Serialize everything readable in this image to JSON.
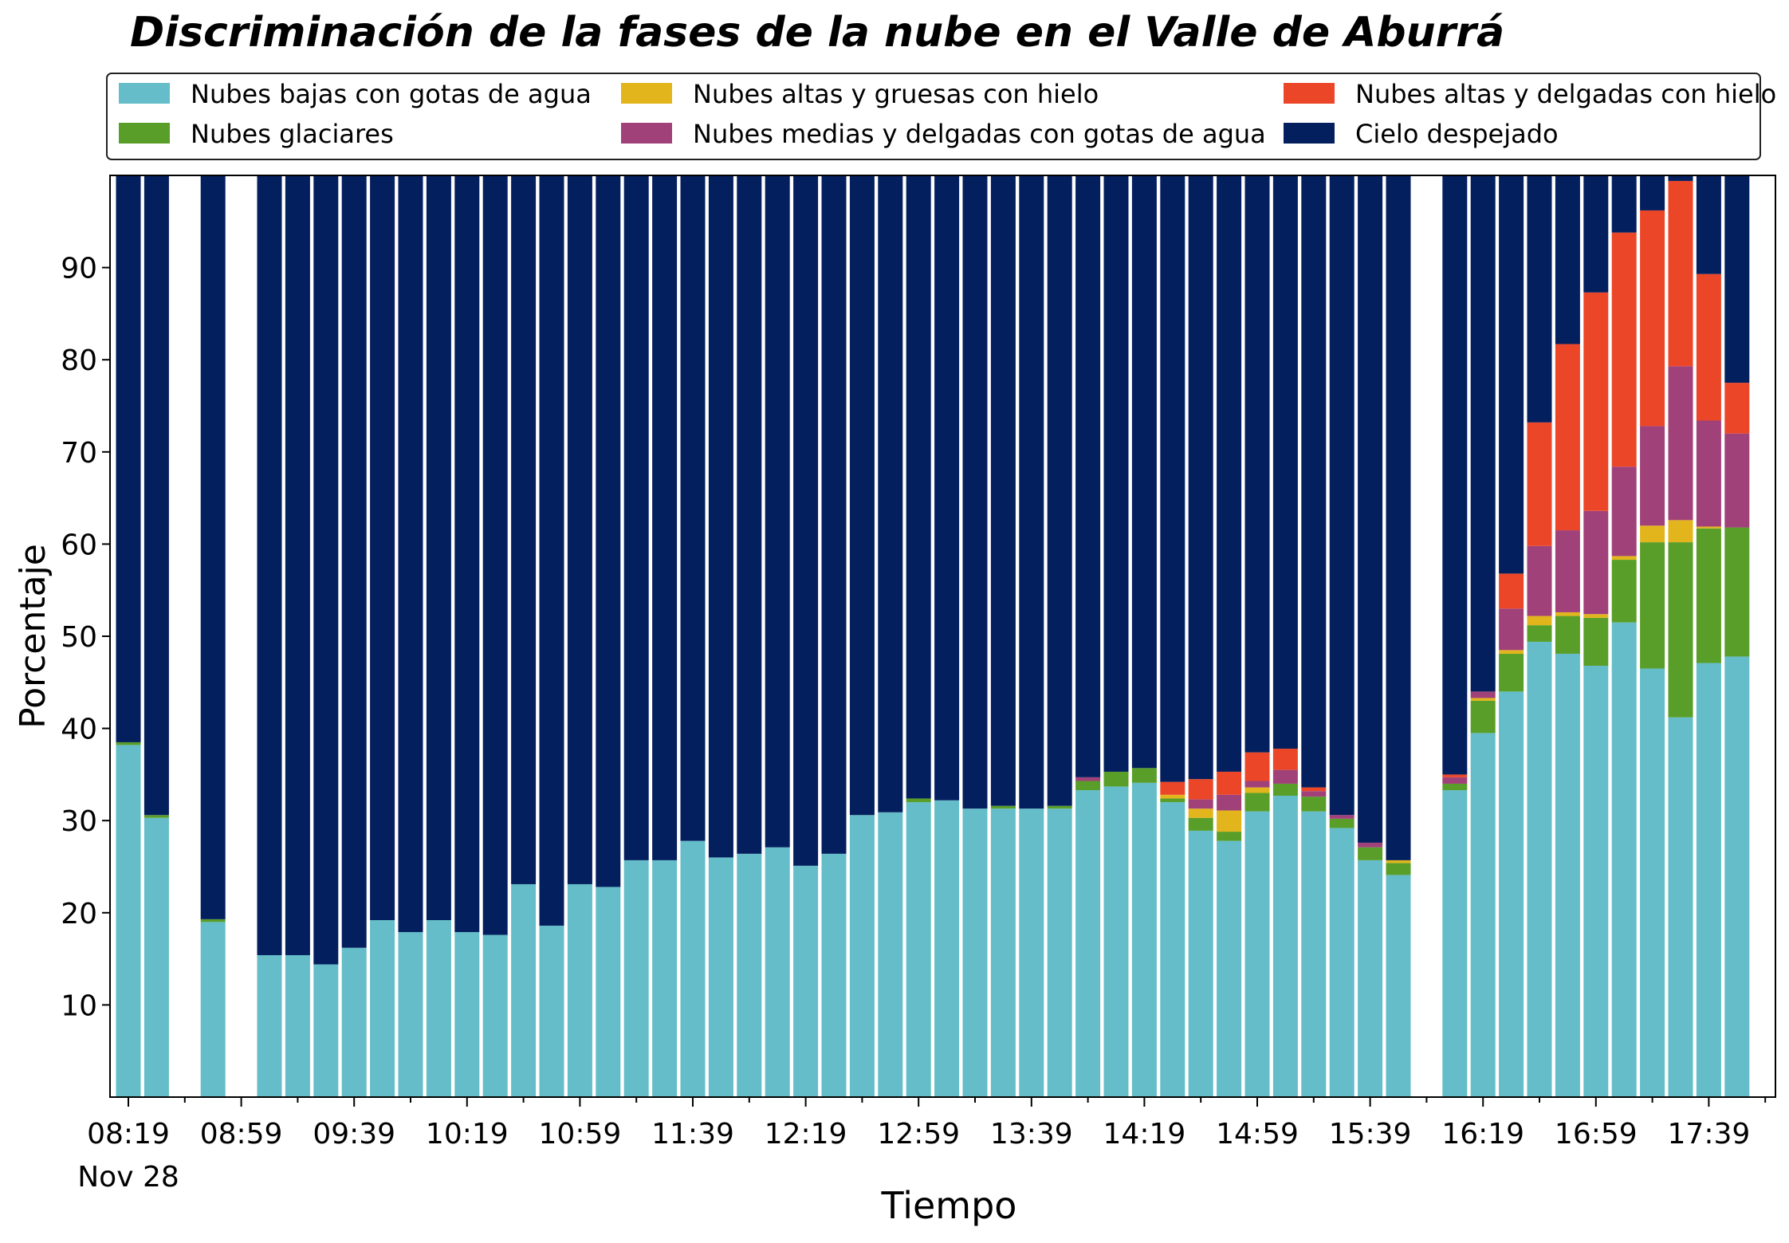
{
  "chart_data": {
    "type": "bar",
    "stacked": true,
    "title": "Discriminación de la fases de la nube en el Valle de Aburrá",
    "xlabel": "Tiempo",
    "ylabel": "Porcentaje",
    "ylim": [
      0,
      100
    ],
    "yticks": [
      10,
      20,
      30,
      40,
      50,
      60,
      70,
      80,
      90
    ],
    "grid": false,
    "legend_position": "top",
    "x_tick_labels": [
      "08:19",
      "08:59",
      "09:39",
      "10:19",
      "10:59",
      "11:39",
      "12:19",
      "12:59",
      "13:39",
      "14:19",
      "14:59",
      "15:39",
      "16:19",
      "16:59",
      "17:39"
    ],
    "x_date_label": "Nov 28",
    "categories": [
      "08:19",
      "08:29",
      "08:39",
      "08:49",
      "08:59",
      "09:09",
      "09:19",
      "09:29",
      "09:39",
      "09:49",
      "09:59",
      "10:09",
      "10:19",
      "10:29",
      "10:39",
      "10:49",
      "10:59",
      "11:09",
      "11:19",
      "11:29",
      "11:39",
      "11:49",
      "11:59",
      "12:09",
      "12:19",
      "12:29",
      "12:39",
      "12:49",
      "12:59",
      "13:09",
      "13:19",
      "13:29",
      "13:39",
      "13:49",
      "13:59",
      "14:09",
      "14:19",
      "14:29",
      "14:39",
      "14:49",
      "14:59",
      "15:09",
      "15:19",
      "15:29",
      "15:39",
      "15:49",
      "15:59",
      "16:09",
      "16:19",
      "16:29",
      "16:39",
      "16:49",
      "16:59",
      "17:09",
      "17:19",
      "17:29",
      "17:39",
      "17:49"
    ],
    "series": [
      {
        "name": "Nubes bajas con gotas de agua",
        "color": "#64bdc8",
        "values": [
          38.2,
          30.3,
          null,
          19.0,
          null,
          15.4,
          15.4,
          14.4,
          16.2,
          19.2,
          17.9,
          19.2,
          17.9,
          17.6,
          23.1,
          18.6,
          23.1,
          22.8,
          25.7,
          25.7,
          27.8,
          26.0,
          26.4,
          27.1,
          25.1,
          26.4,
          30.6,
          30.9,
          32.0,
          32.2,
          31.3,
          31.3,
          31.3,
          31.3,
          33.3,
          33.7,
          34.1,
          32.0,
          28.9,
          27.8,
          31.0,
          32.7,
          31.0,
          29.2,
          25.7,
          24.1,
          null,
          33.3,
          39.5,
          44.0,
          49.4,
          48.1,
          46.8,
          51.5,
          46.5,
          41.2,
          47.1,
          47.8
        ]
      },
      {
        "name": "Nubes glaciares",
        "color": "#5a9e2a",
        "values": [
          0.3,
          0.3,
          null,
          0.3,
          null,
          0,
          0,
          0,
          0,
          0,
          0,
          0,
          0,
          0,
          0,
          0,
          0,
          0,
          0,
          0,
          0,
          0,
          0,
          0,
          0,
          0,
          0,
          0,
          0.4,
          0,
          0,
          0.3,
          0,
          0.3,
          1.0,
          1.6,
          1.6,
          0.4,
          1.4,
          1.0,
          2.0,
          1.3,
          1.6,
          1.0,
          1.4,
          1.3,
          null,
          0.7,
          3.5,
          4.1,
          1.8,
          4.1,
          5.2,
          6.8,
          13.7,
          19.0,
          14.6,
          14.0
        ]
      },
      {
        "name": "Nubes altas y gruesas con hielo",
        "color": "#e3b51c",
        "values": [
          0,
          0,
          null,
          0,
          null,
          0,
          0,
          0,
          0,
          0,
          0,
          0,
          0,
          0,
          0,
          0,
          0,
          0,
          0,
          0,
          0,
          0,
          0,
          0,
          0,
          0,
          0,
          0,
          0,
          0,
          0,
          0,
          0,
          0,
          0,
          0,
          0,
          0.4,
          1.0,
          2.3,
          0.6,
          0,
          0,
          0,
          0,
          0.3,
          null,
          0,
          0.3,
          0.4,
          1.0,
          0.4,
          0.4,
          0.4,
          1.8,
          2.4,
          0.2,
          0
        ]
      },
      {
        "name": "Nubes medias y delgadas con gotas de agua",
        "color": "#a0417a",
        "values": [
          0,
          0,
          null,
          0,
          null,
          0,
          0,
          0,
          0,
          0,
          0,
          0,
          0,
          0,
          0,
          0,
          0,
          0,
          0,
          0,
          0,
          0,
          0,
          0,
          0,
          0,
          0,
          0,
          0,
          0,
          0,
          0,
          0,
          0,
          0.4,
          0,
          0,
          0,
          1.0,
          1.7,
          0.7,
          1.5,
          0.6,
          0.4,
          0.5,
          0,
          null,
          0.7,
          0.7,
          4.5,
          7.6,
          8.9,
          11.2,
          9.7,
          10.8,
          16.7,
          11.5,
          10.2
        ]
      },
      {
        "name": "Nubes altas y delgadas con hielo",
        "color": "#ec4628",
        "values": [
          0,
          0,
          null,
          0,
          null,
          0,
          0,
          0,
          0,
          0,
          0,
          0,
          0,
          0,
          0,
          0,
          0,
          0,
          0,
          0,
          0,
          0,
          0,
          0,
          0,
          0,
          0,
          0,
          0,
          0,
          0,
          0,
          0,
          0,
          0,
          0,
          0,
          1.4,
          2.2,
          2.5,
          3.1,
          2.3,
          0.4,
          0,
          0,
          0,
          null,
          0.3,
          0,
          3.8,
          13.4,
          20.2,
          23.7,
          25.4,
          23.4,
          20.1,
          15.9,
          5.5
        ]
      },
      {
        "name": "Cielo despejado",
        "color": "#041f5e",
        "values": [
          61.5,
          69.4,
          null,
          80.7,
          null,
          84.6,
          84.6,
          85.6,
          83.8,
          80.8,
          82.1,
          80.8,
          82.1,
          82.4,
          76.9,
          81.4,
          76.9,
          77.2,
          74.3,
          74.3,
          72.2,
          74.0,
          73.6,
          72.9,
          74.9,
          73.6,
          69.4,
          69.1,
          67.6,
          67.8,
          68.7,
          68.4,
          68.7,
          68.4,
          65.3,
          64.7,
          64.3,
          65.8,
          65.5,
          64.7,
          62.6,
          62.2,
          66.4,
          69.4,
          72.4,
          74.3,
          null,
          65.0,
          56.0,
          43.2,
          26.8,
          18.3,
          12.7,
          6.2,
          3.8,
          0.8,
          10.7,
          22.5
        ]
      }
    ]
  }
}
